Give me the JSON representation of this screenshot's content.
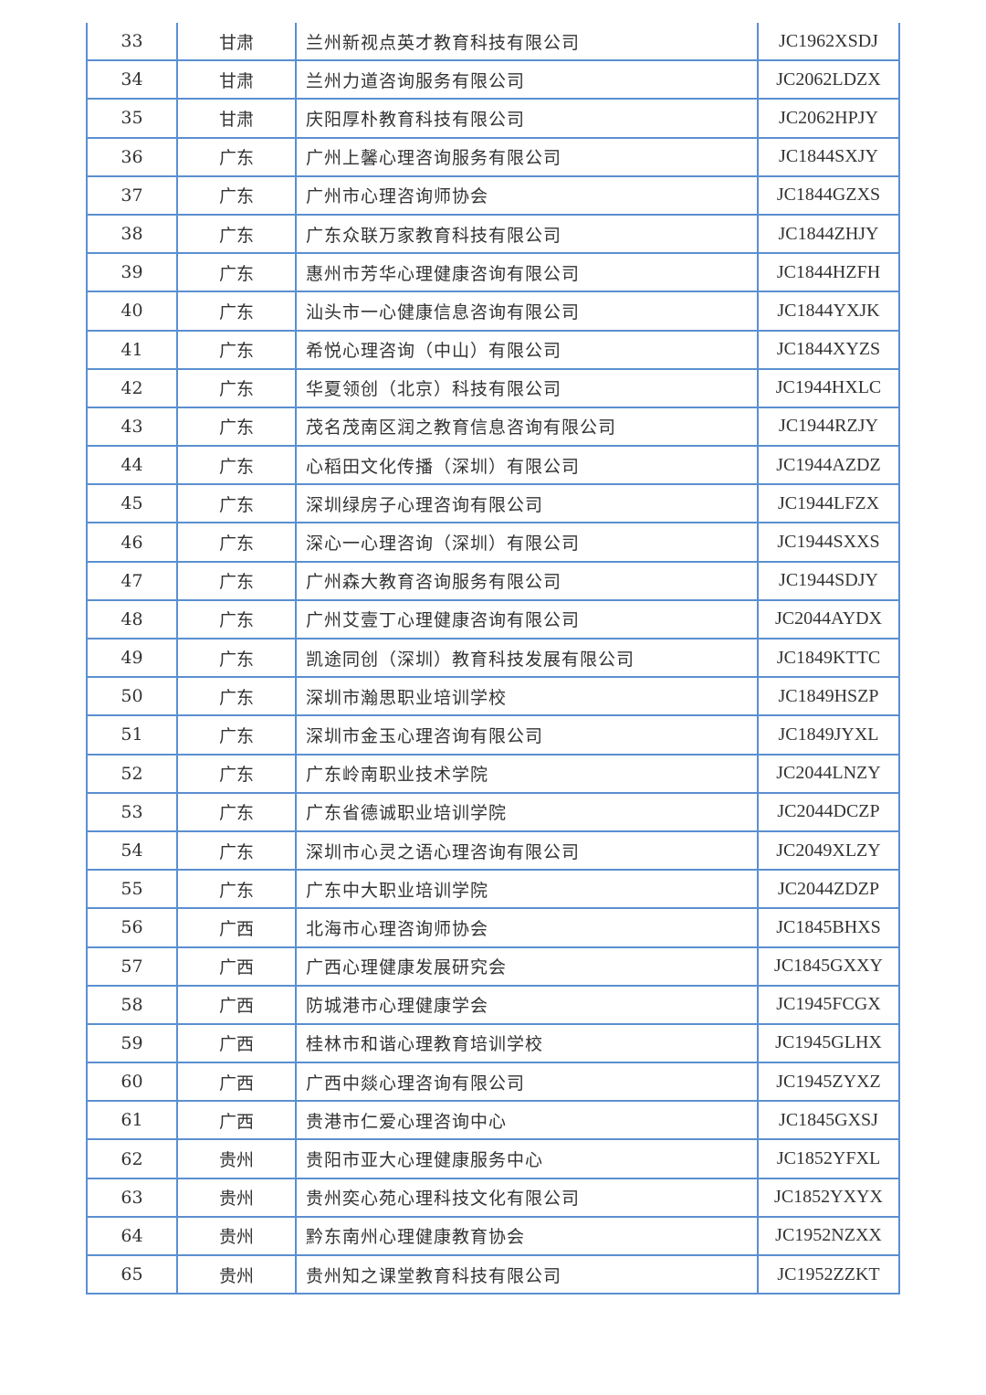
{
  "table": {
    "rows": [
      {
        "no": "33",
        "province": "甘肃",
        "name": "兰州新视点英才教育科技有限公司",
        "code": "JC1962XSDJ"
      },
      {
        "no": "34",
        "province": "甘肃",
        "name": "兰州力道咨询服务有限公司",
        "code": "JC2062LDZX"
      },
      {
        "no": "35",
        "province": "甘肃",
        "name": "庆阳厚朴教育科技有限公司",
        "code": "JC2062HPJY"
      },
      {
        "no": "36",
        "province": "广东",
        "name": "广州上馨心理咨询服务有限公司",
        "code": "JC1844SXJY"
      },
      {
        "no": "37",
        "province": "广东",
        "name": "广州市心理咨询师协会",
        "code": "JC1844GZXS"
      },
      {
        "no": "38",
        "province": "广东",
        "name": "广东众联万家教育科技有限公司",
        "code": "JC1844ZHJY"
      },
      {
        "no": "39",
        "province": "广东",
        "name": "惠州市芳华心理健康咨询有限公司",
        "code": "JC1844HZFH"
      },
      {
        "no": "40",
        "province": "广东",
        "name": "汕头市一心健康信息咨询有限公司",
        "code": "JC1844YXJK"
      },
      {
        "no": "41",
        "province": "广东",
        "name": "希悦心理咨询（中山）有限公司",
        "code": "JC1844XYZS"
      },
      {
        "no": "42",
        "province": "广东",
        "name": "华夏领创（北京）科技有限公司",
        "code": "JC1944HXLC"
      },
      {
        "no": "43",
        "province": "广东",
        "name": "茂名茂南区润之教育信息咨询有限公司",
        "code": "JC1944RZJY"
      },
      {
        "no": "44",
        "province": "广东",
        "name": "心稻田文化传播（深圳）有限公司",
        "code": "JC1944AZDZ"
      },
      {
        "no": "45",
        "province": "广东",
        "name": "深圳绿房子心理咨询有限公司",
        "code": "JC1944LFZX"
      },
      {
        "no": "46",
        "province": "广东",
        "name": "深心一心理咨询（深圳）有限公司",
        "code": "JC1944SXXS"
      },
      {
        "no": "47",
        "province": "广东",
        "name": "广州森大教育咨询服务有限公司",
        "code": "JC1944SDJY"
      },
      {
        "no": "48",
        "province": "广东",
        "name": "广州艾壹丁心理健康咨询有限公司",
        "code": "JC2044AYDX"
      },
      {
        "no": "49",
        "province": "广东",
        "name": "凯途同创（深圳）教育科技发展有限公司",
        "code": "JC1849KTTC"
      },
      {
        "no": "50",
        "province": "广东",
        "name": "深圳市瀚思职业培训学校",
        "code": "JC1849HSZP"
      },
      {
        "no": "51",
        "province": "广东",
        "name": "深圳市金玉心理咨询有限公司",
        "code": "JC1849JYXL"
      },
      {
        "no": "52",
        "province": "广东",
        "name": "广东岭南职业技术学院",
        "code": "JC2044LNZY"
      },
      {
        "no": "53",
        "province": "广东",
        "name": "广东省德诚职业培训学院",
        "code": "JC2044DCZP"
      },
      {
        "no": "54",
        "province": "广东",
        "name": "深圳市心灵之语心理咨询有限公司",
        "code": "JC2049XLZY"
      },
      {
        "no": "55",
        "province": "广东",
        "name": "广东中大职业培训学院",
        "code": "JC2044ZDZP"
      },
      {
        "no": "56",
        "province": "广西",
        "name": "北海市心理咨询师协会",
        "code": "JC1845BHXS"
      },
      {
        "no": "57",
        "province": "广西",
        "name": "广西心理健康发展研究会",
        "code": "JC1845GXXY"
      },
      {
        "no": "58",
        "province": "广西",
        "name": "防城港市心理健康学会",
        "code": "JC1945FCGX"
      },
      {
        "no": "59",
        "province": "广西",
        "name": "桂林市和谐心理教育培训学校",
        "code": "JC1945GLHX"
      },
      {
        "no": "60",
        "province": "广西",
        "name": "广西中燚心理咨询有限公司",
        "code": "JC1945ZYXZ"
      },
      {
        "no": "61",
        "province": "广西",
        "name": "贵港市仁爱心理咨询中心",
        "code": "JC1845GXSJ"
      },
      {
        "no": "62",
        "province": "贵州",
        "name": "贵阳市亚大心理健康服务中心",
        "code": "JC1852YFXL"
      },
      {
        "no": "63",
        "province": "贵州",
        "name": "贵州奕心苑心理科技文化有限公司",
        "code": "JC1852YXYX"
      },
      {
        "no": "64",
        "province": "贵州",
        "name": "黔东南州心理健康教育协会",
        "code": "JC1952NZXX"
      },
      {
        "no": "65",
        "province": "贵州",
        "name": "贵州知之课堂教育科技有限公司",
        "code": "JC1952ZZKT"
      }
    ]
  },
  "colors": {
    "border": "#5b8fd0",
    "text": "#333333"
  }
}
